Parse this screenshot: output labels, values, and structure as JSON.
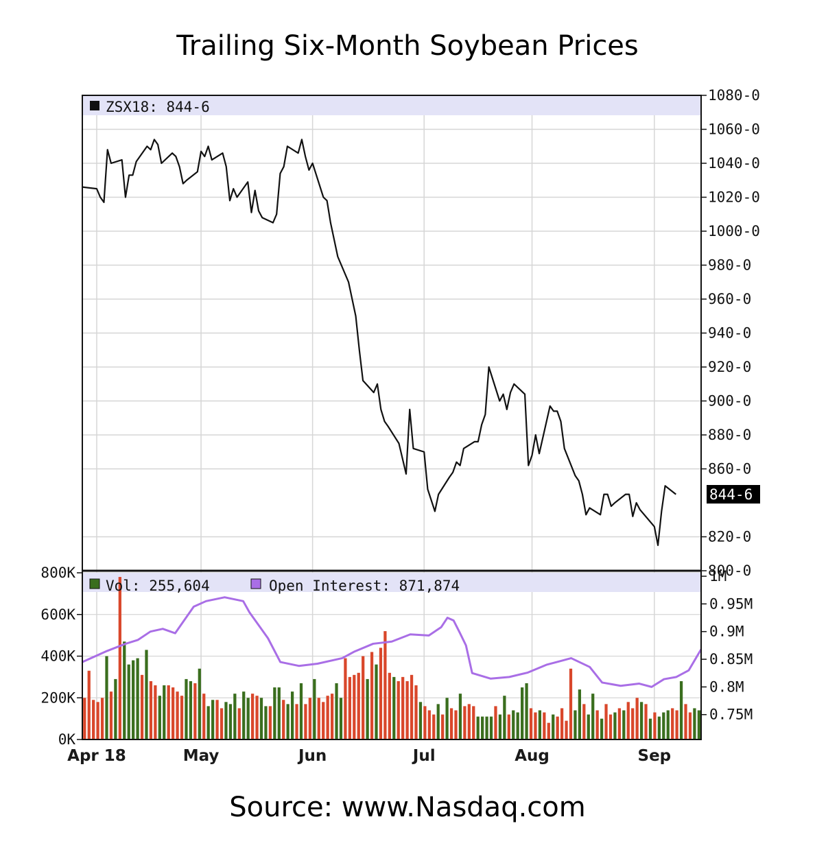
{
  "title": "Trailing Six-Month Soybean Prices",
  "source": "Source: www.Nasdaq.com",
  "colors": {
    "price_line": "#111111",
    "volume_up": "#3a6e1e",
    "volume_down": "#d9472b",
    "open_interest": "#a96ee6",
    "legend_band": "#e3e3f7",
    "grid": "#d6d6d6"
  },
  "chart_data": [
    {
      "type": "line",
      "legend": {
        "swatch": "black-square",
        "label": "ZSX18: 844-6",
        "placement": "top-left"
      },
      "current_value_label": "844-6",
      "ylim": [
        800,
        1080
      ],
      "y_ticks": [
        {
          "value": 800,
          "label": "800-0"
        },
        {
          "value": 820,
          "label": "820-0"
        },
        {
          "value": 860,
          "label": "860-0"
        },
        {
          "value": 880,
          "label": "880-0"
        },
        {
          "value": 900,
          "label": "900-0"
        },
        {
          "value": 920,
          "label": "920-0"
        },
        {
          "value": 940,
          "label": "940-0"
        },
        {
          "value": 960,
          "label": "960-0"
        },
        {
          "value": 980,
          "label": "980-0"
        },
        {
          "value": 1000,
          "label": "1000-0"
        },
        {
          "value": 1020,
          "label": "1020-0"
        },
        {
          "value": 1040,
          "label": "1040-0"
        },
        {
          "value": 1060,
          "label": "1060-0"
        },
        {
          "value": 1080,
          "label": "1080-0"
        }
      ],
      "x_range": [
        "2018-03-29",
        "2018-09-17"
      ],
      "x_ticks": [
        {
          "date": "2018-04-02",
          "label": "Apr 18"
        },
        {
          "date": "2018-05-01",
          "label": "May"
        },
        {
          "date": "2018-06-01",
          "label": "Jun"
        },
        {
          "date": "2018-07-02",
          "label": "Jul"
        },
        {
          "date": "2018-08-01",
          "label": "Aug"
        },
        {
          "date": "2018-09-04",
          "label": "Sep"
        }
      ],
      "grid": true,
      "series": [
        {
          "points": [
            [
              "2018-03-29",
              1026
            ],
            [
              "2018-04-02",
              1025
            ],
            [
              "2018-04-03",
              1020
            ],
            [
              "2018-04-04",
              1017
            ],
            [
              "2018-04-05",
              1048
            ],
            [
              "2018-04-06",
              1040
            ],
            [
              "2018-04-09",
              1042
            ],
            [
              "2018-04-10",
              1020
            ],
            [
              "2018-04-11",
              1033
            ],
            [
              "2018-04-12",
              1033
            ],
            [
              "2018-04-13",
              1041
            ],
            [
              "2018-04-16",
              1050
            ],
            [
              "2018-04-17",
              1048
            ],
            [
              "2018-04-18",
              1054
            ],
            [
              "2018-04-19",
              1051
            ],
            [
              "2018-04-20",
              1040
            ],
            [
              "2018-04-23",
              1046
            ],
            [
              "2018-04-24",
              1044
            ],
            [
              "2018-04-25",
              1038
            ],
            [
              "2018-04-26",
              1028
            ],
            [
              "2018-04-27",
              1030
            ],
            [
              "2018-04-30",
              1035
            ],
            [
              "2018-05-01",
              1047
            ],
            [
              "2018-05-02",
              1044
            ],
            [
              "2018-05-03",
              1050
            ],
            [
              "2018-05-04",
              1042
            ],
            [
              "2018-05-07",
              1046
            ],
            [
              "2018-05-08",
              1038
            ],
            [
              "2018-05-09",
              1018
            ],
            [
              "2018-05-10",
              1025
            ],
            [
              "2018-05-11",
              1020
            ],
            [
              "2018-05-14",
              1029
            ],
            [
              "2018-05-15",
              1011
            ],
            [
              "2018-05-16",
              1024
            ],
            [
              "2018-05-17",
              1012
            ],
            [
              "2018-05-18",
              1008
            ],
            [
              "2018-05-21",
              1005
            ],
            [
              "2018-05-22",
              1010
            ],
            [
              "2018-05-23",
              1034
            ],
            [
              "2018-05-24",
              1038
            ],
            [
              "2018-05-25",
              1050
            ],
            [
              "2018-05-28",
              1046
            ],
            [
              "2018-05-29",
              1054
            ],
            [
              "2018-05-30",
              1044
            ],
            [
              "2018-05-31",
              1036
            ],
            [
              "2018-06-01",
              1040
            ],
            [
              "2018-06-04",
              1020
            ],
            [
              "2018-06-05",
              1018
            ],
            [
              "2018-06-06",
              1005
            ],
            [
              "2018-06-07",
              995
            ],
            [
              "2018-06-08",
              985
            ],
            [
              "2018-06-11",
              970
            ],
            [
              "2018-06-12",
              960
            ],
            [
              "2018-06-13",
              950
            ],
            [
              "2018-06-14",
              930
            ],
            [
              "2018-06-15",
              912
            ],
            [
              "2018-06-18",
              905
            ],
            [
              "2018-06-19",
              910
            ],
            [
              "2018-06-20",
              895
            ],
            [
              "2018-06-21",
              888
            ],
            [
              "2018-06-22",
              885
            ],
            [
              "2018-06-25",
              875
            ],
            [
              "2018-06-26",
              866
            ],
            [
              "2018-06-27",
              857
            ],
            [
              "2018-06-28",
              895
            ],
            [
              "2018-06-29",
              872
            ],
            [
              "2018-07-02",
              870
            ],
            [
              "2018-07-03",
              848
            ],
            [
              "2018-07-05",
              835
            ],
            [
              "2018-07-06",
              845
            ],
            [
              "2018-07-09",
              855
            ],
            [
              "2018-07-10",
              858
            ],
            [
              "2018-07-11",
              864
            ],
            [
              "2018-07-12",
              862
            ],
            [
              "2018-07-13",
              872
            ],
            [
              "2018-07-16",
              876
            ],
            [
              "2018-07-17",
              876
            ],
            [
              "2018-07-18",
              886
            ],
            [
              "2018-07-19",
              892
            ],
            [
              "2018-07-20",
              920
            ],
            [
              "2018-07-23",
              900
            ],
            [
              "2018-07-24",
              904
            ],
            [
              "2018-07-25",
              895
            ],
            [
              "2018-07-26",
              905
            ],
            [
              "2018-07-27",
              910
            ],
            [
              "2018-07-30",
              904
            ],
            [
              "2018-07-31",
              862
            ],
            [
              "2018-08-01",
              868
            ],
            [
              "2018-08-02",
              880
            ],
            [
              "2018-08-03",
              869
            ],
            [
              "2018-08-06",
              897
            ],
            [
              "2018-08-07",
              894
            ],
            [
              "2018-08-08",
              894
            ],
            [
              "2018-08-09",
              888
            ],
            [
              "2018-08-10",
              872
            ],
            [
              "2018-08-13",
              856
            ],
            [
              "2018-08-14",
              853
            ],
            [
              "2018-08-15",
              845
            ],
            [
              "2018-08-16",
              833
            ],
            [
              "2018-08-17",
              837
            ],
            [
              "2018-08-20",
              833
            ],
            [
              "2018-08-21",
              845
            ],
            [
              "2018-08-22",
              845
            ],
            [
              "2018-08-23",
              838
            ],
            [
              "2018-08-24",
              840
            ],
            [
              "2018-08-27",
              845
            ],
            [
              "2018-08-28",
              845
            ],
            [
              "2018-08-29",
              832
            ],
            [
              "2018-08-30",
              840
            ],
            [
              "2018-08-31",
              836
            ],
            [
              "2018-09-04",
              826
            ],
            [
              "2018-09-05",
              815
            ],
            [
              "2018-09-06",
              835
            ],
            [
              "2018-09-07",
              850
            ],
            [
              "2018-09-10",
              845
            ]
          ]
        }
      ]
    },
    {
      "type": "bar",
      "legend": [
        {
          "swatch": "green-square",
          "label": "Vol: 255,604"
        },
        {
          "swatch": "purple-square",
          "label": "Open Interest: 871,874"
        }
      ],
      "left_axis": {
        "ylim": [
          0,
          800000
        ],
        "ticks": [
          {
            "value": 0,
            "label": "0K"
          },
          {
            "value": 200000,
            "label": "200K"
          },
          {
            "value": 400000,
            "label": "400K"
          },
          {
            "value": 600000,
            "label": "600K"
          },
          {
            "value": 800000,
            "label": "800K"
          }
        ]
      },
      "right_axis": {
        "ylim": [
          0.71,
          1.0
        ],
        "ticks": [
          {
            "value": 0.75,
            "label": "0.75M"
          },
          {
            "value": 0.8,
            "label": "0.8M"
          },
          {
            "value": 0.85,
            "label": "0.85M"
          },
          {
            "value": 0.9,
            "label": "0.9M"
          },
          {
            "value": 0.95,
            "label": "0.95M"
          },
          {
            "value": 1.0,
            "label": "1M"
          }
        ]
      },
      "volume_values": [
        200000,
        330000,
        190000,
        180000,
        200000,
        400000,
        230000,
        290000,
        780000,
        470000,
        360000,
        380000,
        390000,
        310000,
        430000,
        280000,
        260000,
        210000,
        260000,
        260000,
        250000,
        230000,
        210000,
        290000,
        280000,
        270000,
        340000,
        220000,
        160000,
        190000,
        190000,
        150000,
        180000,
        170000,
        220000,
        150000,
        230000,
        200000,
        220000,
        210000,
        200000,
        160000,
        160000,
        250000,
        250000,
        190000,
        170000,
        230000,
        170000,
        270000,
        170000,
        200000,
        290000,
        200000,
        180000,
        210000,
        220000,
        270000,
        200000,
        390000,
        300000,
        310000,
        320000,
        400000,
        290000,
        420000,
        360000,
        440000,
        520000,
        320000,
        300000,
        280000,
        300000,
        280000,
        310000,
        260000,
        180000,
        160000,
        140000,
        120000,
        170000,
        120000,
        200000,
        150000,
        140000,
        220000,
        160000,
        170000,
        160000,
        110000,
        110000,
        110000,
        110000,
        160000,
        120000,
        210000,
        120000,
        140000,
        130000,
        250000,
        270000,
        150000,
        130000,
        140000,
        130000,
        80000,
        120000,
        110000,
        150000,
        90000,
        340000,
        140000,
        240000,
        170000,
        120000,
        220000,
        140000,
        100000,
        170000,
        120000,
        130000,
        150000,
        140000,
        180000,
        150000,
        200000,
        180000,
        170000,
        100000,
        130000,
        110000,
        130000,
        140000,
        150000,
        140000,
        280000,
        170000,
        130000,
        150000,
        140000
      ],
      "volume_up": [
        false,
        false,
        false,
        false,
        false,
        true,
        false,
        true,
        false,
        true,
        true,
        true,
        true,
        false,
        true,
        false,
        false,
        true,
        true,
        false,
        false,
        false,
        false,
        true,
        true,
        false,
        true,
        false,
        true,
        true,
        false,
        false,
        true,
        true,
        true,
        false,
        true,
        true,
        false,
        false,
        true,
        true,
        false,
        true,
        true,
        false,
        true,
        true,
        false,
        true,
        false,
        false,
        true,
        false,
        false,
        false,
        false,
        true,
        true,
        false,
        false,
        false,
        false,
        false,
        true,
        false,
        true,
        false,
        false,
        false,
        true,
        false,
        false,
        false,
        false,
        false,
        true,
        false,
        false,
        false,
        true,
        false,
        true,
        false,
        false,
        true,
        false,
        false,
        false,
        true,
        true,
        true,
        true,
        false,
        true,
        true,
        false,
        true,
        true,
        true,
        true,
        false,
        false,
        true,
        false,
        false,
        true,
        false,
        false,
        false,
        false,
        true,
        true,
        false,
        true,
        true,
        false,
        true,
        false,
        false,
        true,
        false,
        true,
        false,
        false,
        false,
        true,
        false,
        true,
        false,
        true,
        true,
        true,
        false,
        false,
        true,
        false,
        false,
        true,
        true
      ],
      "open_interest": [
        [
          0.0,
          0.845
        ],
        [
          0.04,
          0.865
        ],
        [
          0.07,
          0.878
        ],
        [
          0.09,
          0.885
        ],
        [
          0.11,
          0.9
        ],
        [
          0.13,
          0.905
        ],
        [
          0.15,
          0.897
        ],
        [
          0.18,
          0.945
        ],
        [
          0.2,
          0.955
        ],
        [
          0.23,
          0.962
        ],
        [
          0.26,
          0.955
        ],
        [
          0.27,
          0.935
        ],
        [
          0.3,
          0.888
        ],
        [
          0.32,
          0.845
        ],
        [
          0.35,
          0.838
        ],
        [
          0.38,
          0.842
        ],
        [
          0.42,
          0.852
        ],
        [
          0.44,
          0.864
        ],
        [
          0.47,
          0.878
        ],
        [
          0.5,
          0.882
        ],
        [
          0.53,
          0.895
        ],
        [
          0.56,
          0.893
        ],
        [
          0.58,
          0.908
        ],
        [
          0.59,
          0.925
        ],
        [
          0.6,
          0.92
        ],
        [
          0.61,
          0.898
        ],
        [
          0.62,
          0.875
        ],
        [
          0.63,
          0.825
        ],
        [
          0.66,
          0.815
        ],
        [
          0.69,
          0.818
        ],
        [
          0.72,
          0.826
        ],
        [
          0.75,
          0.84
        ],
        [
          0.77,
          0.846
        ],
        [
          0.79,
          0.852
        ],
        [
          0.82,
          0.836
        ],
        [
          0.84,
          0.808
        ],
        [
          0.87,
          0.802
        ],
        [
          0.9,
          0.806
        ],
        [
          0.92,
          0.8
        ],
        [
          0.94,
          0.814
        ],
        [
          0.96,
          0.818
        ],
        [
          0.98,
          0.83
        ],
        [
          1.0,
          0.868
        ]
      ]
    }
  ]
}
